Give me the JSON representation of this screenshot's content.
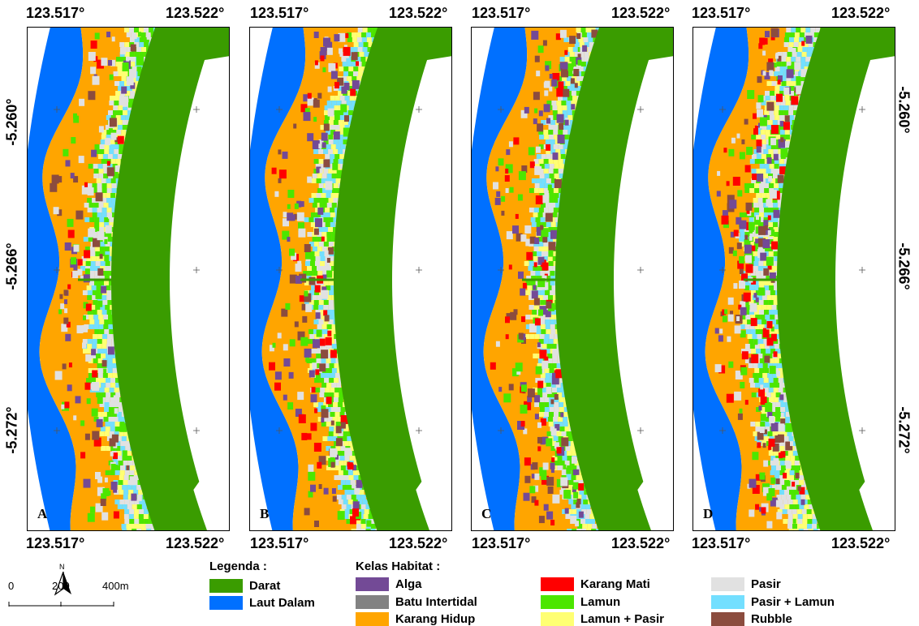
{
  "coords": {
    "lon_left": "123.517°",
    "lon_right": "123.522°",
    "lat_1": "-5.260°",
    "lat_2": "-5.266°",
    "lat_3": "-5.272°"
  },
  "panels": [
    {
      "letter": "A"
    },
    {
      "letter": "B"
    },
    {
      "letter": "C"
    },
    {
      "letter": "D"
    }
  ],
  "north": {
    "label": "N"
  },
  "scale": {
    "l0": "0",
    "l1": "200",
    "l2": "400m"
  },
  "legend": {
    "title": "Legenda :",
    "darat": {
      "label": "Darat",
      "color": "#3a9c00"
    },
    "laut": {
      "label": "Laut Dalam",
      "color": "#0070ff"
    }
  },
  "habitat": {
    "title": "Kelas Habitat :",
    "alga": {
      "label": "Alga",
      "color": "#734a96"
    },
    "batu": {
      "label": "Batu Intertidal",
      "color": "#828282"
    },
    "karang_hidup": {
      "label": "Karang Hidup",
      "color": "#ffa500"
    },
    "karang_mati": {
      "label": "Karang Mati",
      "color": "#ff0000"
    },
    "lamun": {
      "label": "Lamun",
      "color": "#4ce600"
    },
    "lamun_pasir": {
      "label": "Lamun + Pasir",
      "color": "#ffff73"
    },
    "pasir": {
      "label": "Pasir",
      "color": "#e1e1e1"
    },
    "pasir_lamun": {
      "label": "Pasir + Lamun",
      "color": "#73dfff"
    },
    "rubble": {
      "label": "Rubble",
      "color": "#8b4c3e"
    }
  }
}
